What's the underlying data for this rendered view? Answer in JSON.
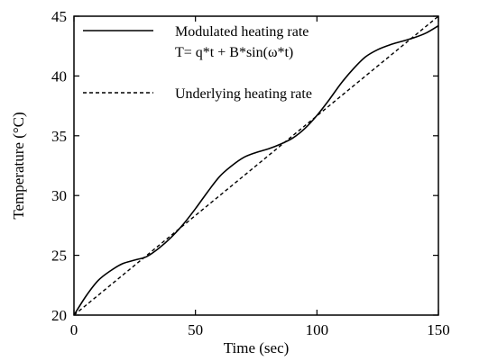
{
  "chart_data": {
    "type": "line",
    "xlabel": "Time (sec)",
    "ylabel": "Temperature (°C)",
    "xlim": [
      0,
      150
    ],
    "ylim": [
      20,
      45
    ],
    "xticks": [
      0,
      50,
      100,
      150
    ],
    "yticks": [
      20,
      25,
      30,
      35,
      40,
      45
    ],
    "grid": false,
    "legend_position": "top-left",
    "series": [
      {
        "name": "Modulated heating rate",
        "formula": "T= q*t + B*sin(ω*t)",
        "style": "solid",
        "x": [
          0,
          5,
          10,
          15,
          20,
          25,
          30,
          35,
          40,
          45,
          50,
          55,
          60,
          65,
          70,
          75,
          80,
          85,
          90,
          95,
          100,
          105,
          110,
          115,
          120,
          125,
          130,
          135,
          140,
          145,
          150
        ],
        "y": [
          20.0,
          21.6,
          22.9,
          23.7,
          24.3,
          24.6,
          24.9,
          25.6,
          26.5,
          27.6,
          28.9,
          30.3,
          31.6,
          32.5,
          33.2,
          33.6,
          33.9,
          34.3,
          34.8,
          35.6,
          36.7,
          38.0,
          39.4,
          40.6,
          41.6,
          42.2,
          42.6,
          42.9,
          43.2,
          43.6,
          44.2
        ]
      },
      {
        "name": "Underlying heating rate",
        "style": "dashed",
        "x": [
          0,
          150
        ],
        "y": [
          20.0,
          45.0
        ]
      }
    ]
  }
}
